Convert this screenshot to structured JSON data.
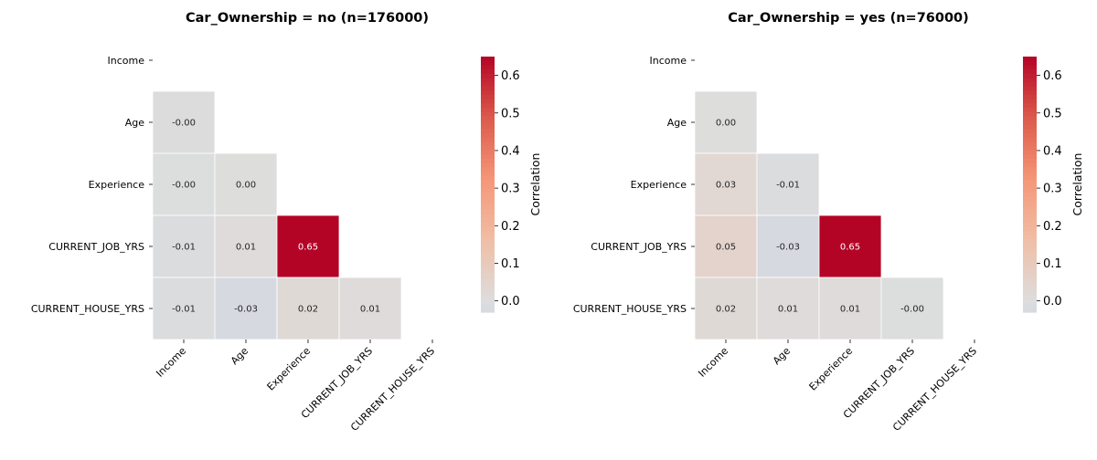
{
  "chart_data": [
    {
      "type": "heatmap",
      "title": "Car_Ownership = no (n=176000)",
      "variables": [
        "Income",
        "Age",
        "Experience",
        "CURRENT_JOB_YRS",
        "CURRENT_HOUSE_YRS"
      ],
      "lower_triangle": [
        [
          "-0.00"
        ],
        [
          "-0.00",
          "0.00"
        ],
        [
          "-0.01",
          "0.01",
          "0.65"
        ],
        [
          "-0.01",
          "-0.03",
          "0.02",
          "0.01"
        ]
      ],
      "values": [
        [
          -0.004
        ],
        [
          -0.003,
          0.002
        ],
        [
          -0.008,
          0.008,
          0.65
        ],
        [
          -0.01,
          -0.03,
          0.02,
          0.01
        ]
      ],
      "colorbar": {
        "label": "Correlation",
        "range": [
          -0.03,
          0.65
        ],
        "ticks": [
          "0.0",
          "0.1",
          "0.2",
          "0.3",
          "0.4",
          "0.5",
          "0.6"
        ],
        "tick_values": [
          0.0,
          0.1,
          0.2,
          0.3,
          0.4,
          0.5,
          0.6
        ],
        "colormap": "coolwarm (centered at 0)"
      }
    },
    {
      "type": "heatmap",
      "title": "Car_Ownership = yes (n=76000)",
      "variables": [
        "Income",
        "Age",
        "Experience",
        "CURRENT_JOB_YRS",
        "CURRENT_HOUSE_YRS"
      ],
      "lower_triangle": [
        [
          "0.00"
        ],
        [
          "0.03",
          "-0.01"
        ],
        [
          "0.05",
          "-0.03",
          "0.65"
        ],
        [
          "0.02",
          "0.01",
          "0.01",
          "-0.00"
        ]
      ],
      "values": [
        [
          0.002
        ],
        [
          0.03,
          -0.01
        ],
        [
          0.05,
          -0.03,
          0.65
        ],
        [
          0.02,
          0.01,
          0.01,
          -0.003
        ]
      ],
      "colorbar": {
        "label": "Correlation",
        "range": [
          -0.03,
          0.65
        ],
        "ticks": [
          "0.0",
          "0.1",
          "0.2",
          "0.3",
          "0.4",
          "0.5",
          "0.6"
        ],
        "tick_values": [
          0.0,
          0.1,
          0.2,
          0.3,
          0.4,
          0.5,
          0.6
        ],
        "colormap": "coolwarm (centered at 0)"
      }
    }
  ]
}
